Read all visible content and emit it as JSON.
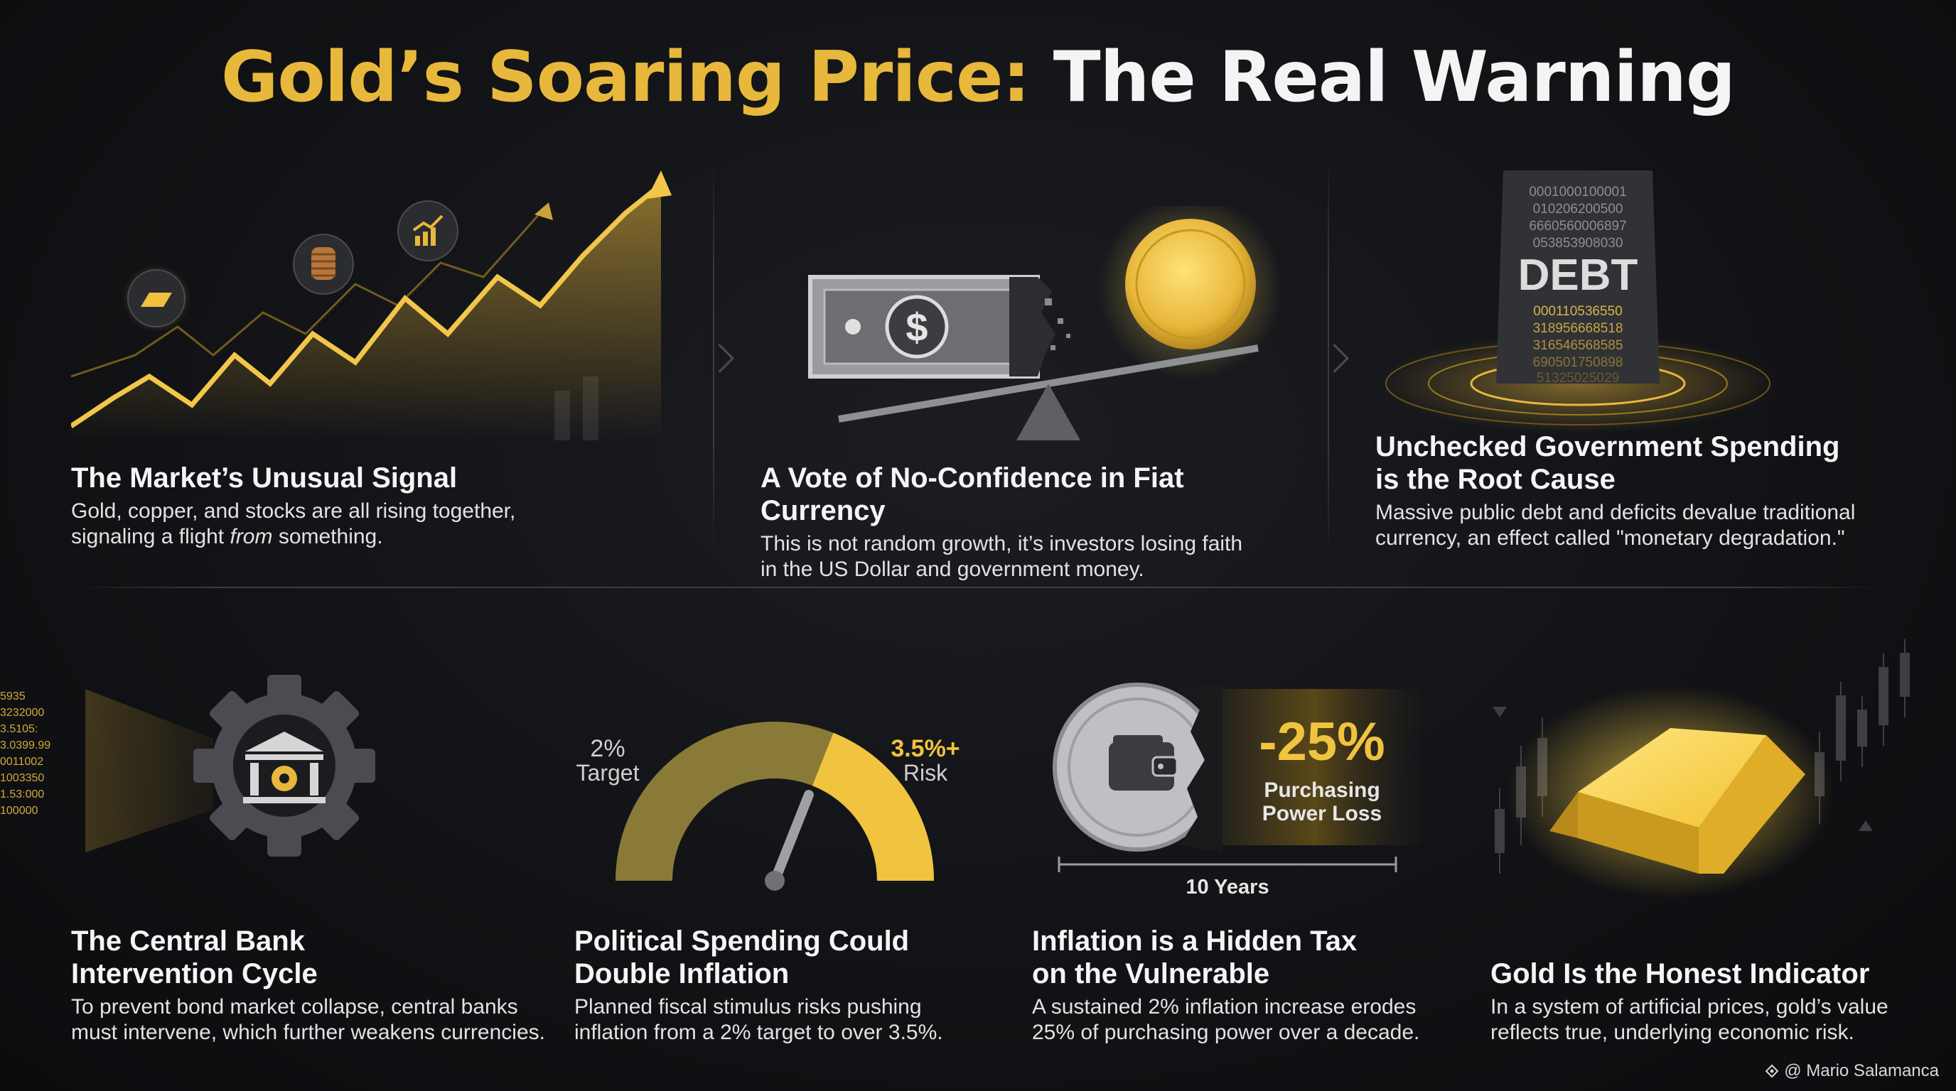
{
  "title": {
    "gold": "Gold’s Soaring Price:",
    "white": "The Real Warning"
  },
  "panels": [
    {
      "heading": [
        "The Market’s Unusual Signal"
      ],
      "desc_a": "Gold, copper, and stocks are all rising together,",
      "desc_b_pre": "signaling a flight ",
      "desc_b_em": "from",
      "desc_b_post": " something."
    },
    {
      "heading": [
        "A Vote of No-Confidence in Fiat Currency"
      ],
      "desc": [
        "This is not random growth, it’s investors losing faith",
        "in the US Dollar and government money."
      ]
    },
    {
      "heading": [
        "Unchecked Government Spending",
        "is the Root Cause"
      ],
      "desc": [
        "Massive public debt and deficits devalue traditional",
        "currency, an effect called \"monetary degradation.\""
      ]
    },
    {
      "heading": [
        "The Central Bank",
        "Intervention Cycle"
      ],
      "desc": [
        "To prevent bond market collapse, central banks",
        "must intervene, which further weakens currencies."
      ]
    },
    {
      "heading": [
        "Political Spending Could",
        "Double Inflation"
      ],
      "desc": [
        "Planned fiscal stimulus risks pushing",
        "inflation from a 2% target to over 3.5%."
      ]
    },
    {
      "heading": [
        "Inflation is a Hidden Tax",
        "on the Vulnerable"
      ],
      "desc": [
        "A sustained 2% inflation increase erodes",
        "25% of purchasing power over a decade."
      ]
    },
    {
      "heading": [
        "Gold Is the Honest Indicator"
      ],
      "desc": [
        "In a system of artificial prices, gold’s value",
        "reflects true, underlying economic risk."
      ]
    }
  ],
  "debt_pillar": {
    "label": "DEBT",
    "digits_top": [
      "0001000100001",
      "010206200500",
      "6660560006897",
      "053853908030"
    ],
    "digits_bottom": [
      "000110536550",
      "318956668518",
      "316546568585",
      "690501750898",
      "51325025029"
    ]
  },
  "gauge": {
    "left_value": "2%",
    "left_label": "Target",
    "right_value": "3.5%+",
    "right_label": "Risk",
    "level": 0.62
  },
  "purchasing": {
    "value": "-25%",
    "label_a": "Purchasing",
    "label_b": "Power Loss",
    "timeline": "10 Years"
  },
  "binary_stream": [
    "5935",
    "3232000",
    "3.5105:",
    "3.0399.99",
    "0011002",
    "1003350",
    "1.53:000",
    "100000"
  ],
  "credit": "@ Mario Salamanca",
  "colors": {
    "gold": "#e8b83c",
    "gold_light": "#f5d25a",
    "background": "#121316"
  },
  "icons": [
    "gold-bar-icon",
    "coins-icon",
    "trend-chart-icon",
    "dollar-bill-icon",
    "gold-coin-icon",
    "balance-scale-icon",
    "bank-gear-icon",
    "wallet-icon",
    "candlestick-chart-icon",
    "diamond-logo-icon"
  ]
}
